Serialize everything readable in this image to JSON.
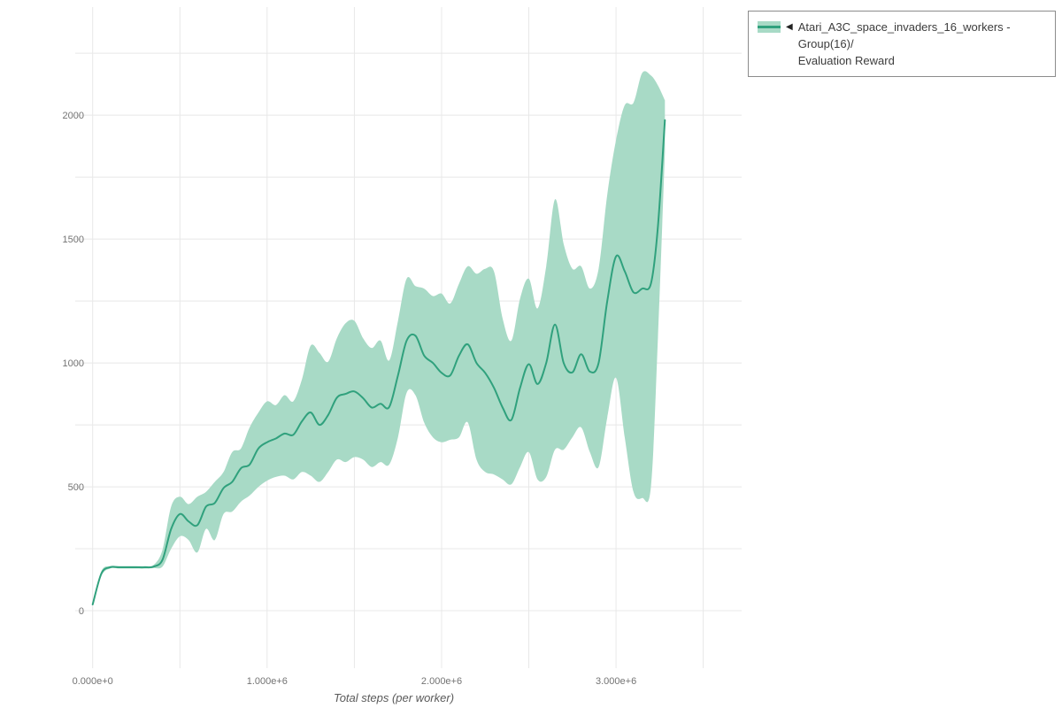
{
  "page": {
    "background": "#ffffff"
  },
  "legend": {
    "collapse_icon": "◀",
    "label_line1": "Atari_A3C_space_invaders_16_workers - Group(16)/",
    "label_line2": "Evaluation Reward",
    "border_color": "#8c8c8c",
    "text_color": "#3c3c3c"
  },
  "chart_data": {
    "type": "line",
    "title": "",
    "xlabel": "Total steps (per worker)",
    "ylabel": "",
    "legend_position": "top-right-outside",
    "grid_on": true,
    "x_range": [
      -100000,
      3720000
    ],
    "y_range": [
      -232,
      2436
    ],
    "x_ticks": [
      {
        "value": 0,
        "label": "0.000e+0"
      },
      {
        "value": 1000000,
        "label": "1.000e+6"
      },
      {
        "value": 2000000,
        "label": "2.000e+6"
      },
      {
        "value": 3000000,
        "label": "3.000e+6"
      }
    ],
    "y_ticks": [
      {
        "value": 0,
        "label": "0"
      },
      {
        "value": 500,
        "label": "500"
      },
      {
        "value": 1000,
        "label": "1000"
      },
      {
        "value": 1500,
        "label": "1500"
      },
      {
        "value": 2000,
        "label": "2000"
      }
    ],
    "grid": {
      "x_values": [
        0,
        500000,
        1000000,
        1500000,
        2000000,
        2500000,
        3000000,
        3500000
      ],
      "y_values": [
        0,
        250,
        500,
        750,
        1000,
        1250,
        1500,
        1750,
        2000,
        2250
      ],
      "color": "#e8e8e8"
    },
    "tick_color": "#737373",
    "series": [
      {
        "name": "Atari_A3C_space_invaders_16_workers - Group(16)/Evaluation Reward",
        "line_color": "#30a17d",
        "band_color": "#a8dac6",
        "x": [
          0,
          50000,
          100000,
          150000,
          200000,
          250000,
          300000,
          350000,
          400000,
          450000,
          500000,
          550000,
          600000,
          650000,
          700000,
          750000,
          800000,
          850000,
          900000,
          950000,
          1000000,
          1050000,
          1100000,
          1150000,
          1200000,
          1250000,
          1300000,
          1350000,
          1400000,
          1450000,
          1500000,
          1550000,
          1600000,
          1650000,
          1700000,
          1750000,
          1800000,
          1850000,
          1900000,
          1950000,
          2000000,
          2050000,
          2100000,
          2150000,
          2200000,
          2250000,
          2300000,
          2350000,
          2400000,
          2450000,
          2500000,
          2550000,
          2600000,
          2650000,
          2700000,
          2750000,
          2800000,
          2850000,
          2900000,
          2950000,
          3000000,
          3050000,
          3100000,
          3150000,
          3200000,
          3240000,
          3280000
        ],
        "mean": [
          25,
          150,
          175,
          175,
          175,
          175,
          175,
          178,
          205,
          330,
          390,
          360,
          345,
          420,
          435,
          495,
          520,
          575,
          590,
          655,
          680,
          695,
          715,
          710,
          765,
          800,
          750,
          790,
          860,
          875,
          885,
          858,
          820,
          835,
          822,
          950,
          1090,
          1110,
          1030,
          1000,
          960,
          950,
          1030,
          1075,
          1000,
          960,
          900,
          820,
          770,
          900,
          995,
          915,
          1000,
          1155,
          1000,
          962,
          1035,
          965,
          1000,
          1250,
          1430,
          1370,
          1285,
          1300,
          1320,
          1550,
          1980
        ],
        "upper": [
          30,
          160,
          180,
          180,
          180,
          180,
          180,
          185,
          245,
          420,
          460,
          430,
          460,
          480,
          520,
          560,
          640,
          655,
          740,
          800,
          845,
          830,
          870,
          845,
          935,
          1070,
          1040,
          1005,
          1100,
          1160,
          1170,
          1100,
          1060,
          1090,
          1010,
          1170,
          1340,
          1310,
          1300,
          1270,
          1280,
          1240,
          1320,
          1390,
          1360,
          1380,
          1370,
          1180,
          1090,
          1260,
          1340,
          1220,
          1390,
          1660,
          1480,
          1380,
          1390,
          1300,
          1380,
          1680,
          1900,
          2040,
          2050,
          2170,
          2160,
          2120,
          2060
        ],
        "lower": [
          20,
          140,
          170,
          170,
          170,
          170,
          170,
          172,
          178,
          250,
          300,
          285,
          235,
          330,
          285,
          390,
          400,
          440,
          465,
          500,
          525,
          540,
          545,
          530,
          560,
          545,
          520,
          560,
          610,
          600,
          620,
          610,
          580,
          600,
          590,
          700,
          880,
          870,
          760,
          700,
          680,
          690,
          700,
          760,
          610,
          560,
          550,
          530,
          510,
          580,
          640,
          530,
          540,
          650,
          650,
          700,
          740,
          640,
          580,
          780,
          940,
          700,
          480,
          455,
          500,
          1100,
          1850
        ]
      }
    ]
  }
}
